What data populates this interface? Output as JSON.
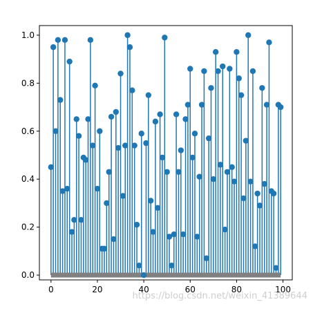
{
  "colors": {
    "stem": "#1f77b4",
    "marker": "#1f77b4",
    "baseline": "#808080",
    "axes": "#000000",
    "background": "#ffffff"
  },
  "watermark": "https://blog.csdn.net/weixin_41389644",
  "chart_data": {
    "type": "stem",
    "title": "",
    "xlabel": "",
    "ylabel": "",
    "xlim": [
      -5,
      104
    ],
    "ylim": [
      -0.02,
      1.04
    ],
    "grid": false,
    "legend": "none",
    "baseline": 0,
    "xticks": [
      0,
      20,
      40,
      60,
      80,
      100
    ],
    "yticks": [
      0.0,
      0.2,
      0.4,
      0.6,
      0.8,
      1.0
    ],
    "xtick_labels": [
      "0",
      "20",
      "40",
      "60",
      "80",
      "100"
    ],
    "ytick_labels": [
      "0.0",
      "0.2",
      "0.4",
      "0.6",
      "0.8",
      "1.0"
    ],
    "x": [
      0,
      1,
      2,
      3,
      4,
      5,
      6,
      7,
      8,
      9,
      10,
      11,
      12,
      13,
      14,
      15,
      16,
      17,
      18,
      19,
      20,
      21,
      22,
      23,
      24,
      25,
      26,
      27,
      28,
      29,
      30,
      31,
      32,
      33,
      34,
      35,
      36,
      37,
      38,
      39,
      40,
      41,
      42,
      43,
      44,
      45,
      46,
      47,
      48,
      49,
      50,
      51,
      52,
      53,
      54,
      55,
      56,
      57,
      58,
      59,
      60,
      61,
      62,
      63,
      64,
      65,
      66,
      67,
      68,
      69,
      70,
      71,
      72,
      73,
      74,
      75,
      76,
      77,
      78,
      79,
      80,
      81,
      82,
      83,
      84,
      85,
      86,
      87,
      88,
      89,
      90,
      91,
      92,
      93,
      94,
      95,
      96,
      97,
      98,
      99
    ],
    "values": [
      0.45,
      0.95,
      0.6,
      0.98,
      0.73,
      0.35,
      0.98,
      0.36,
      0.89,
      0.18,
      0.23,
      0.65,
      0.58,
      0.23,
      0.49,
      0.48,
      0.65,
      0.98,
      0.54,
      0.79,
      0.36,
      0.6,
      0.11,
      0.11,
      0.3,
      0.43,
      0.66,
      0.15,
      0.68,
      0.53,
      0.84,
      0.33,
      0.54,
      1.0,
      0.95,
      0.77,
      0.54,
      0.21,
      0.04,
      0.59,
      0.0,
      0.55,
      0.75,
      0.31,
      0.18,
      0.64,
      0.28,
      0.67,
      0.49,
      0.99,
      0.43,
      0.16,
      0.04,
      0.17,
      0.67,
      0.43,
      0.52,
      0.17,
      0.65,
      0.71,
      0.86,
      0.49,
      0.59,
      0.16,
      0.41,
      0.71,
      0.85,
      0.07,
      0.57,
      0.78,
      0.4,
      0.93,
      0.85,
      0.46,
      0.87,
      0.19,
      0.43,
      0.86,
      0.45,
      0.39,
      0.93,
      0.82,
      0.75,
      0.32,
      0.56,
      1.0,
      0.39,
      0.85,
      0.12,
      0.34,
      0.29,
      0.78,
      0.38,
      0.71,
      0.97,
      0.35,
      0.34,
      0.03,
      0.71,
      0.7
    ]
  }
}
